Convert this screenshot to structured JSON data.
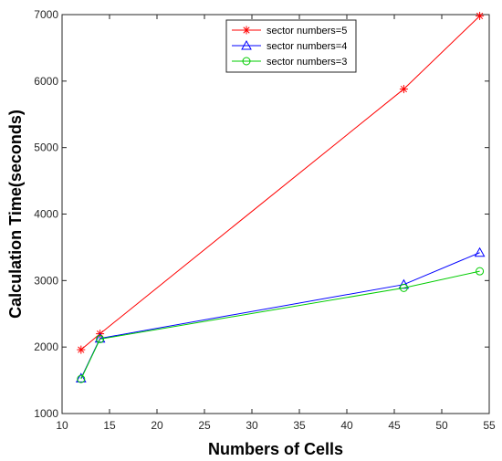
{
  "chart_data": {
    "type": "line",
    "xlabel": "Numbers of Cells",
    "ylabel": "Calculation Time(seconds)",
    "xlim": [
      10,
      55
    ],
    "ylim": [
      1000,
      7000
    ],
    "xticks": [
      10,
      15,
      20,
      25,
      30,
      35,
      40,
      45,
      50,
      55
    ],
    "yticks": [
      1000,
      2000,
      3000,
      4000,
      5000,
      6000,
      7000
    ],
    "grid": false,
    "legend_position": "top-center",
    "x": [
      12,
      14,
      46,
      54
    ],
    "series": [
      {
        "name": "sector numbers=5",
        "color": "#ff0000",
        "marker": "asterisk",
        "values": [
          1960,
          2200,
          5880,
          6980
        ]
      },
      {
        "name": "sector numbers=4",
        "color": "#0000ff",
        "marker": "triangle",
        "values": [
          1530,
          2130,
          2940,
          3420
        ]
      },
      {
        "name": "sector numbers=3",
        "color": "#00cc00",
        "marker": "circle",
        "values": [
          1520,
          2120,
          2890,
          3140
        ]
      }
    ]
  }
}
